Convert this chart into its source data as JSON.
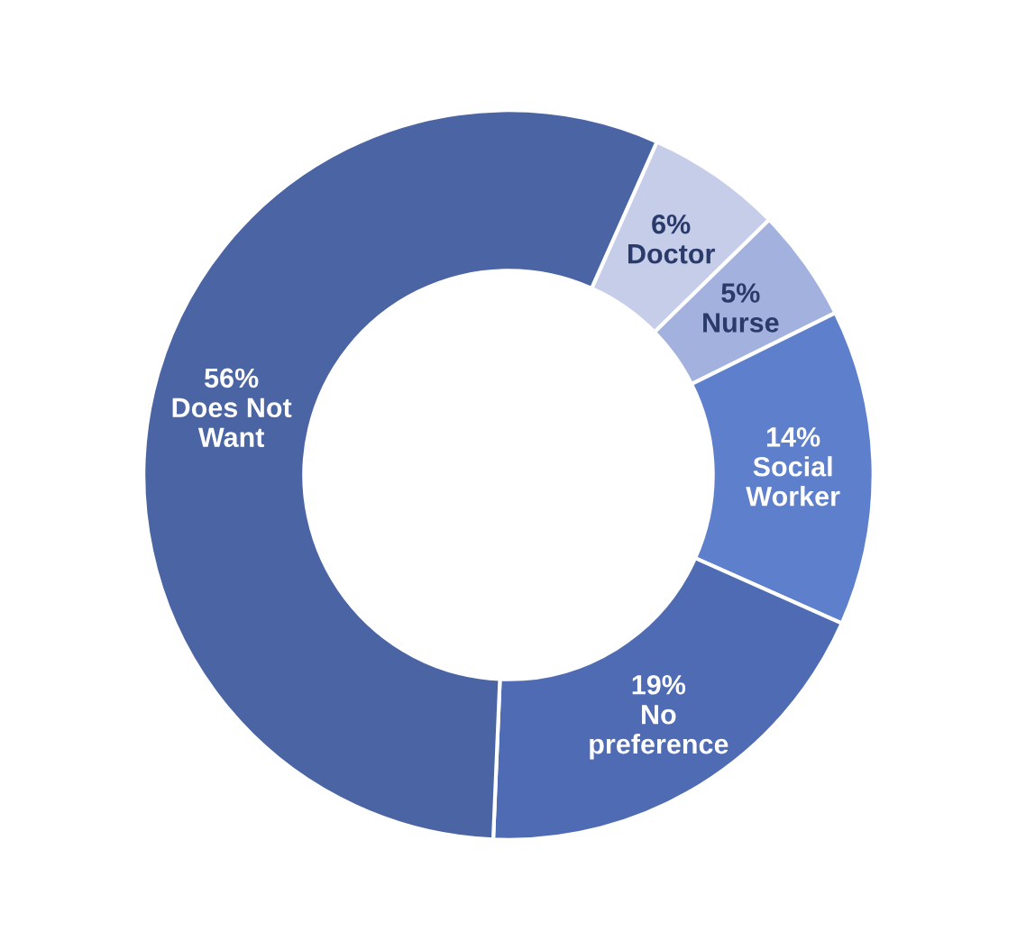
{
  "chart_data": {
    "type": "donut",
    "categories": [
      "Doctor",
      "Nurse",
      "Social\nWorker",
      "No\npreference",
      "Does Not\nWant"
    ],
    "values": [
      6,
      5,
      14,
      19,
      56
    ],
    "value_labels": [
      "6%",
      "5%",
      "14%",
      "19%",
      "56%"
    ],
    "colors": [
      "#c5cde8",
      "#a3b1de",
      "#5e7fcc",
      "#4f6bb3",
      "#4a64a4"
    ],
    "legend": false
  }
}
